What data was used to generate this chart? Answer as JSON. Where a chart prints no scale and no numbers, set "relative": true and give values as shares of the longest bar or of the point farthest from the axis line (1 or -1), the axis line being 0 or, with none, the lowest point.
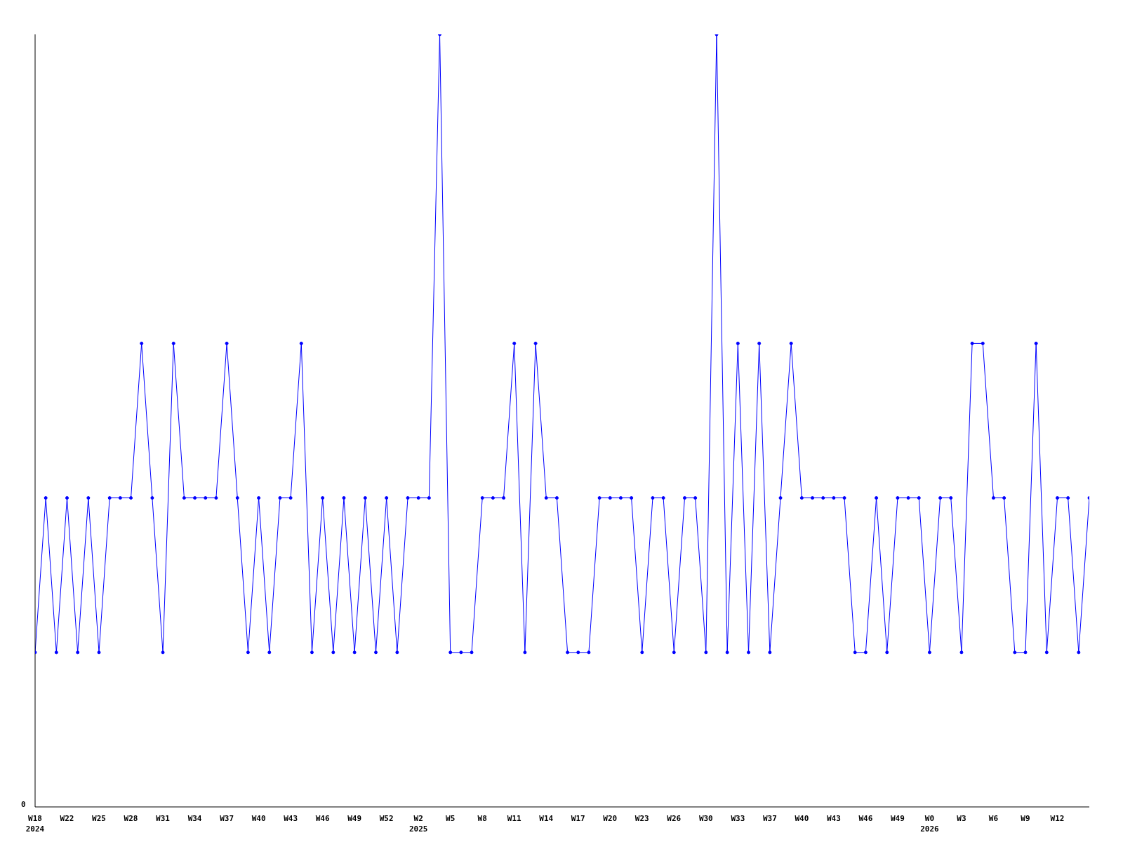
{
  "chart_data": {
    "type": "line",
    "relative": true,
    "annotations": [
      "0"
    ],
    "grid": false,
    "legend": false,
    "marker": "circle",
    "line_style": "solid",
    "categories": [
      "W18\n2024",
      null,
      null,
      "W22",
      null,
      null,
      "W25",
      null,
      null,
      "W28",
      null,
      null,
      "W31",
      null,
      null,
      "W34",
      null,
      null,
      "W37",
      null,
      null,
      "W40",
      null,
      null,
      "W43",
      null,
      null,
      "W46",
      null,
      null,
      "W49",
      null,
      null,
      "W52",
      null,
      null,
      "W2\n2025",
      null,
      null,
      "W5",
      null,
      null,
      "W8",
      null,
      null,
      "W11",
      null,
      null,
      "W14",
      null,
      null,
      "W17",
      null,
      null,
      "W20",
      null,
      null,
      "W23",
      null,
      null,
      "W26",
      null,
      null,
      "W30",
      null,
      null,
      "W33",
      null,
      null,
      "W37",
      null,
      null,
      "W40",
      null,
      null,
      "W43",
      null,
      null,
      "W46",
      null,
      null,
      "W49",
      null,
      null,
      "W0\n2026",
      null,
      null,
      "W3",
      null,
      null,
      "W6",
      null,
      null,
      "W9",
      null,
      null,
      "W12",
      null,
      null,
      null
    ],
    "series": [
      {
        "color": "#0000ff",
        "values": [
          0.2,
          0.4,
          0.2,
          0.4,
          0.2,
          0.4,
          0.2,
          0.4,
          0.4,
          0.4,
          0.6,
          0.4,
          0.2,
          0.6,
          0.4,
          0.4,
          0.4,
          0.4,
          0.6,
          0.4,
          0.2,
          0.4,
          0.2,
          0.4,
          0.4,
          0.6,
          0.2,
          0.4,
          0.2,
          0.4,
          0.2,
          0.4,
          0.2,
          0.4,
          0.2,
          0.4,
          0.4,
          0.4,
          1,
          0.2,
          0.2,
          0.2,
          0.4,
          0.4,
          0.4,
          0.6,
          0.2,
          0.6,
          0.4,
          0.4,
          0.2,
          0.2,
          0.2,
          0.4,
          0.4,
          0.4,
          0.4,
          0.2,
          0.4,
          0.4,
          0.2,
          0.4,
          0.4,
          0.2,
          1,
          0.2,
          0.6,
          0.2,
          0.6,
          0.2,
          0.4,
          0.6,
          0.4,
          0.4,
          0.4,
          0.4,
          0.4,
          0.2,
          0.2,
          0.4,
          0.2,
          0.4,
          0.4,
          0.4,
          0.2,
          0.4,
          0.4,
          0.2,
          0.6,
          0.6,
          0.4,
          0.4,
          0.2,
          0.2,
          0.6,
          0.2,
          0.4,
          0.4,
          0.2,
          0.4
        ]
      }
    ]
  }
}
